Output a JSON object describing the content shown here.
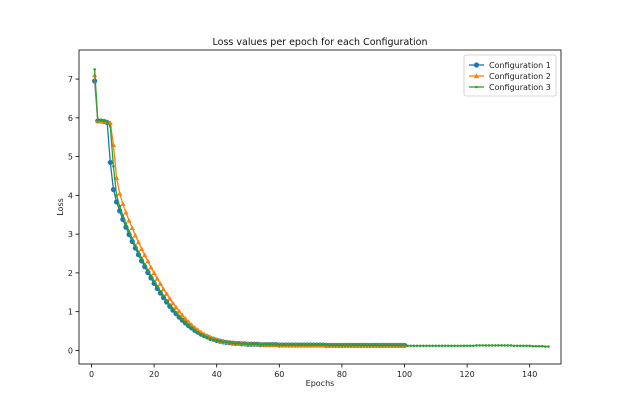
{
  "chart_data": {
    "type": "line",
    "title": "Loss values per epoch for each Configuration",
    "xlabel": "Epochs",
    "ylabel": "Loss",
    "xlim": [
      -4,
      150
    ],
    "ylim": [
      -0.35,
      7.75
    ],
    "xticks": [
      0,
      20,
      40,
      60,
      80,
      100,
      120,
      140
    ],
    "yticks": [
      0,
      1,
      2,
      3,
      4,
      5,
      6,
      7
    ],
    "grid": false,
    "legend_position": "top-right",
    "series": [
      {
        "name": "Configuration 1",
        "color": "#1f77b4",
        "marker": "circle",
        "x": [
          1,
          2,
          3,
          4,
          5,
          6,
          7,
          8,
          9,
          10,
          11,
          12,
          13,
          14,
          15,
          16,
          17,
          18,
          19,
          20,
          21,
          22,
          23,
          24,
          25,
          26,
          27,
          28,
          29,
          30,
          31,
          32,
          33,
          34,
          35,
          36,
          37,
          38,
          39,
          40,
          41,
          42,
          43,
          44,
          45,
          46,
          47,
          48,
          49,
          50,
          51,
          52,
          53,
          54,
          55,
          56,
          57,
          58,
          59,
          60,
          61,
          62,
          63,
          64,
          65,
          66,
          67,
          68,
          69,
          70,
          71,
          72,
          73,
          74,
          75,
          76,
          77,
          78,
          79,
          80,
          81,
          82,
          83,
          84,
          85,
          86,
          87,
          88,
          89,
          90,
          91,
          92,
          93,
          94,
          95,
          96,
          97,
          98,
          99,
          100
        ],
        "y": [
          6.95,
          5.92,
          5.92,
          5.91,
          5.88,
          4.85,
          4.15,
          3.83,
          3.6,
          3.38,
          3.18,
          2.99,
          2.81,
          2.64,
          2.47,
          2.31,
          2.16,
          2.01,
          1.87,
          1.73,
          1.6,
          1.48,
          1.36,
          1.25,
          1.14,
          1.04,
          0.95,
          0.86,
          0.78,
          0.71,
          0.64,
          0.58,
          0.52,
          0.47,
          0.42,
          0.38,
          0.35,
          0.31,
          0.29,
          0.26,
          0.24,
          0.22,
          0.21,
          0.2,
          0.19,
          0.18,
          0.18,
          0.17,
          0.17,
          0.16,
          0.16,
          0.16,
          0.16,
          0.15,
          0.15,
          0.15,
          0.15,
          0.15,
          0.15,
          0.14,
          0.14,
          0.14,
          0.14,
          0.14,
          0.14,
          0.14,
          0.14,
          0.14,
          0.14,
          0.14,
          0.14,
          0.14,
          0.14,
          0.14,
          0.13,
          0.13,
          0.13,
          0.13,
          0.13,
          0.13,
          0.13,
          0.13,
          0.13,
          0.13,
          0.13,
          0.13,
          0.13,
          0.13,
          0.13,
          0.13,
          0.13,
          0.13,
          0.13,
          0.13,
          0.13,
          0.13,
          0.13,
          0.13,
          0.13,
          0.13
        ]
      },
      {
        "name": "Configuration 2",
        "color": "#ff7f0e",
        "marker": "triangle",
        "x": [
          1,
          2,
          3,
          4,
          5,
          6,
          7,
          8,
          9,
          10,
          11,
          12,
          13,
          14,
          15,
          16,
          17,
          18,
          19,
          20,
          21,
          22,
          23,
          24,
          25,
          26,
          27,
          28,
          29,
          30,
          31,
          32,
          33,
          34,
          35,
          36,
          37,
          38,
          39,
          40,
          41,
          42,
          43,
          44,
          45,
          46,
          47,
          48,
          49,
          50,
          51,
          52,
          53,
          54,
          55,
          56,
          57,
          58,
          59,
          60,
          61,
          62,
          63,
          64,
          65,
          66,
          67,
          68,
          69,
          70,
          71,
          72,
          73,
          74,
          75,
          76,
          77,
          78,
          79,
          80,
          81,
          82,
          83,
          84,
          85,
          86,
          87,
          88,
          89,
          90,
          91,
          92,
          93,
          94,
          95,
          96,
          97,
          98,
          99,
          100
        ],
        "y": [
          7.1,
          5.93,
          5.92,
          5.92,
          5.9,
          5.87,
          5.3,
          4.45,
          4.05,
          3.78,
          3.56,
          3.35,
          3.16,
          2.97,
          2.79,
          2.62,
          2.46,
          2.3,
          2.14,
          2.0,
          1.85,
          1.72,
          1.58,
          1.46,
          1.34,
          1.22,
          1.11,
          1.01,
          0.91,
          0.82,
          0.74,
          0.66,
          0.59,
          0.53,
          0.47,
          0.42,
          0.38,
          0.34,
          0.31,
          0.28,
          0.25,
          0.23,
          0.22,
          0.21,
          0.2,
          0.19,
          0.18,
          0.18,
          0.17,
          0.17,
          0.16,
          0.16,
          0.16,
          0.16,
          0.15,
          0.15,
          0.15,
          0.15,
          0.15,
          0.15,
          0.14,
          0.14,
          0.14,
          0.14,
          0.14,
          0.14,
          0.14,
          0.14,
          0.14,
          0.14,
          0.14,
          0.14,
          0.14,
          0.14,
          0.14,
          0.13,
          0.13,
          0.13,
          0.13,
          0.13,
          0.13,
          0.13,
          0.13,
          0.13,
          0.13,
          0.13,
          0.13,
          0.13,
          0.13,
          0.13,
          0.13,
          0.13,
          0.13,
          0.13,
          0.13,
          0.13,
          0.13,
          0.13,
          0.13,
          0.13
        ]
      },
      {
        "name": "Configuration 3",
        "color": "#2ca02c",
        "marker": "point",
        "x": [
          1,
          2,
          3,
          4,
          5,
          6,
          7,
          8,
          9,
          10,
          11,
          12,
          13,
          14,
          15,
          16,
          17,
          18,
          19,
          20,
          21,
          22,
          23,
          24,
          25,
          26,
          27,
          28,
          29,
          30,
          31,
          32,
          33,
          34,
          35,
          36,
          37,
          38,
          39,
          40,
          41,
          42,
          43,
          44,
          45,
          46,
          47,
          48,
          49,
          50,
          51,
          52,
          53,
          54,
          55,
          56,
          57,
          58,
          59,
          60,
          61,
          62,
          63,
          64,
          65,
          66,
          67,
          68,
          69,
          70,
          71,
          72,
          73,
          74,
          75,
          76,
          77,
          78,
          79,
          80,
          81,
          82,
          83,
          84,
          85,
          86,
          87,
          88,
          89,
          90,
          91,
          92,
          93,
          94,
          95,
          96,
          97,
          98,
          99,
          100,
          101,
          102,
          103,
          104,
          105,
          106,
          107,
          108,
          109,
          110,
          111,
          112,
          113,
          114,
          115,
          116,
          117,
          118,
          119,
          120,
          121,
          122,
          123,
          124,
          125,
          126,
          127,
          128,
          129,
          130,
          131,
          132,
          133,
          134,
          135,
          136,
          137,
          138,
          139,
          140,
          141,
          142,
          143,
          144,
          145,
          146
        ],
        "y": [
          7.25,
          5.93,
          5.93,
          5.92,
          5.9,
          5.78,
          4.75,
          4.0,
          3.72,
          3.48,
          3.27,
          3.07,
          2.89,
          2.71,
          2.54,
          2.38,
          2.22,
          2.07,
          1.93,
          1.79,
          1.66,
          1.53,
          1.41,
          1.29,
          1.18,
          1.08,
          0.98,
          0.89,
          0.8,
          0.72,
          0.65,
          0.59,
          0.53,
          0.47,
          0.42,
          0.38,
          0.34,
          0.31,
          0.28,
          0.26,
          0.24,
          0.22,
          0.21,
          0.2,
          0.19,
          0.18,
          0.18,
          0.17,
          0.17,
          0.16,
          0.16,
          0.16,
          0.16,
          0.15,
          0.15,
          0.15,
          0.15,
          0.15,
          0.15,
          0.14,
          0.14,
          0.14,
          0.14,
          0.14,
          0.14,
          0.14,
          0.14,
          0.14,
          0.14,
          0.14,
          0.14,
          0.14,
          0.14,
          0.14,
          0.14,
          0.13,
          0.13,
          0.13,
          0.13,
          0.13,
          0.13,
          0.13,
          0.13,
          0.13,
          0.13,
          0.13,
          0.13,
          0.13,
          0.13,
          0.13,
          0.13,
          0.13,
          0.13,
          0.13,
          0.13,
          0.13,
          0.13,
          0.13,
          0.13,
          0.13,
          0.12,
          0.12,
          0.12,
          0.12,
          0.12,
          0.12,
          0.12,
          0.12,
          0.12,
          0.12,
          0.12,
          0.12,
          0.12,
          0.12,
          0.12,
          0.12,
          0.12,
          0.12,
          0.12,
          0.12,
          0.12,
          0.12,
          0.13,
          0.13,
          0.13,
          0.13,
          0.13,
          0.13,
          0.13,
          0.13,
          0.13,
          0.13,
          0.13,
          0.13,
          0.12,
          0.12,
          0.12,
          0.12,
          0.12,
          0.12,
          0.11,
          0.11,
          0.11,
          0.11,
          0.1,
          0.1
        ]
      }
    ]
  }
}
